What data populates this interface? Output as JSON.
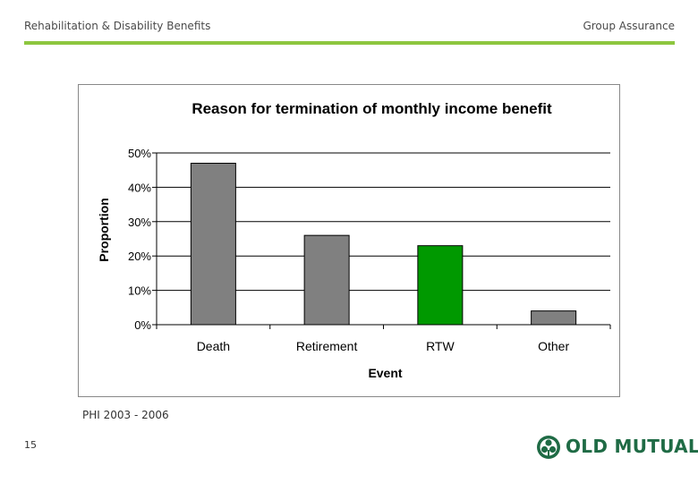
{
  "header": {
    "left_title": "Rehabilitation & Disability Benefits",
    "right_title": "Group Assurance",
    "accent_color": "#8dc63f"
  },
  "chart_data": {
    "type": "bar",
    "title": "Reason for termination of monthly income benefit",
    "xlabel": "Event",
    "ylabel": "Proportion",
    "categories": [
      "Death",
      "Retirement",
      "RTW",
      "Other"
    ],
    "values": [
      47,
      26,
      23,
      4
    ],
    "colors": [
      "#808080",
      "#808080",
      "#009900",
      "#808080"
    ],
    "ylim": [
      0,
      50
    ],
    "yticks": [
      0,
      10,
      20,
      30,
      40,
      50
    ],
    "ytick_labels": [
      "0%",
      "10%",
      "20%",
      "30%",
      "40%",
      "50%"
    ],
    "grid": true,
    "legend": "none"
  },
  "footer": {
    "note": "PHI 2003 - 2006",
    "page_number": "15",
    "logo_text": "OLD MUTUAL",
    "logo_color": "#1f6b45"
  }
}
